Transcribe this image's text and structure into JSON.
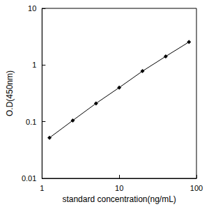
{
  "chart_data": {
    "type": "line",
    "x_label": "standard concentration(ng/mL)",
    "y_label": "O.D(450nm)",
    "x": [
      1.25,
      2.5,
      5,
      10,
      20,
      40,
      80
    ],
    "values": [
      0.052,
      0.105,
      0.21,
      0.4,
      0.78,
      1.42,
      2.55
    ],
    "color": "#000000",
    "marker": "diamond",
    "line_style": "solid",
    "log": true,
    "grid": false,
    "xlim": [
      1,
      100
    ],
    "ylim": [
      0.01,
      10
    ],
    "xticks": [
      1,
      10,
      100
    ],
    "yticks": [
      0.01,
      0.1,
      1,
      10
    ]
  }
}
